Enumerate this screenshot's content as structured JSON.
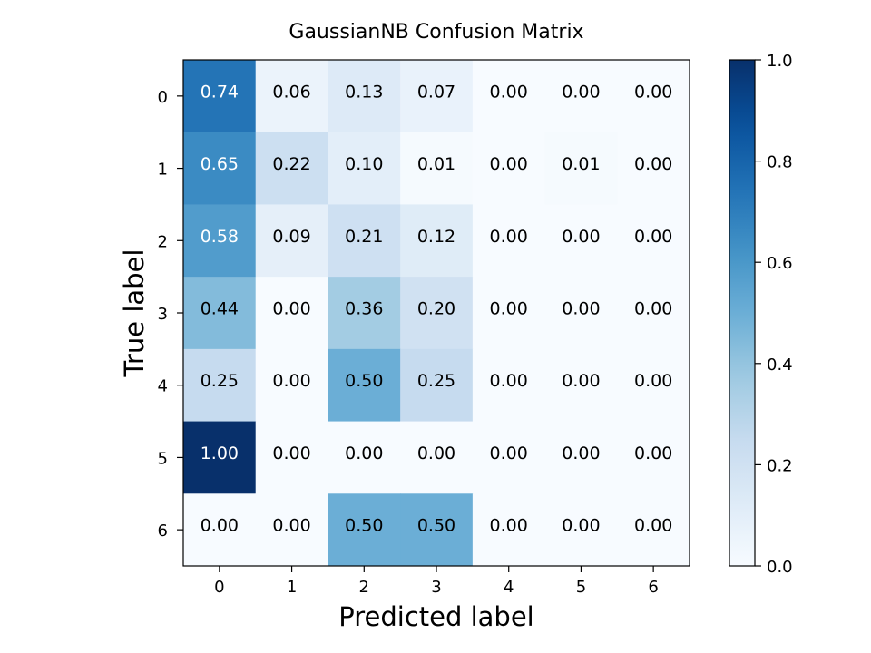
{
  "chart_data": {
    "type": "heatmap",
    "title": "GaussianNB Confusion Matrix",
    "xlabel": "Predicted label",
    "ylabel": "True label",
    "x_categories": [
      "0",
      "1",
      "2",
      "3",
      "4",
      "5",
      "6"
    ],
    "y_categories": [
      "0",
      "1",
      "2",
      "3",
      "4",
      "5",
      "6"
    ],
    "values": [
      [
        0.74,
        0.06,
        0.13,
        0.07,
        0.0,
        0.0,
        0.0
      ],
      [
        0.65,
        0.22,
        0.1,
        0.01,
        0.0,
        0.01,
        0.0
      ],
      [
        0.58,
        0.09,
        0.21,
        0.12,
        0.0,
        0.0,
        0.0
      ],
      [
        0.44,
        0.0,
        0.36,
        0.2,
        0.0,
        0.0,
        0.0
      ],
      [
        0.25,
        0.0,
        0.5,
        0.25,
        0.0,
        0.0,
        0.0
      ],
      [
        1.0,
        0.0,
        0.0,
        0.0,
        0.0,
        0.0,
        0.0
      ],
      [
        0.0,
        0.0,
        0.5,
        0.5,
        0.0,
        0.0,
        0.0
      ]
    ],
    "value_format": "2 decimals",
    "colormap": "Blues",
    "color_range": [
      0.0,
      1.0
    ],
    "colorbar": {
      "ticks": [
        "0.0",
        "0.2",
        "0.4",
        "0.6",
        "0.8",
        "1.0"
      ],
      "tick_values": [
        0.0,
        0.2,
        0.4,
        0.6,
        0.8,
        1.0
      ]
    },
    "text_color_light": "#ffffff",
    "text_color_dark": "#000000",
    "grid": false
  }
}
